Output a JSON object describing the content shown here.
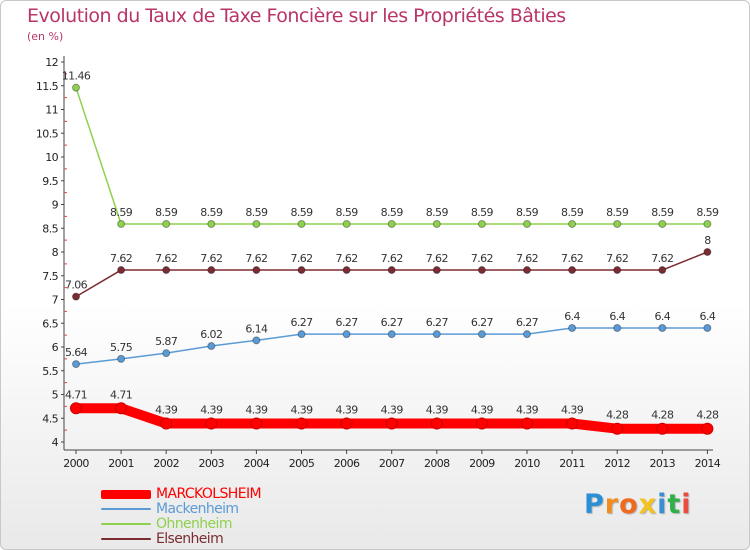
{
  "chart_data": {
    "type": "line",
    "title": "Evolution du Taux de Taxe Foncière sur les Propriétés Bâties",
    "subtitle": "(en %)",
    "xlabel": "",
    "ylabel": "",
    "x": [
      "2000",
      "2001",
      "2002",
      "2003",
      "2004",
      "2005",
      "2006",
      "2007",
      "2008",
      "2009",
      "2010",
      "2011",
      "2012",
      "2013",
      "2014"
    ],
    "ylim": [
      4,
      12
    ],
    "yticks": [
      4,
      4.5,
      5,
      5.5,
      6,
      6.5,
      7,
      7.5,
      8,
      8.5,
      9,
      9.5,
      10,
      10.5,
      11,
      11.5,
      12
    ],
    "ytick_labels": [
      "4",
      "4.5",
      "5",
      "5.5",
      "6",
      "6.5",
      "7",
      "7.5",
      "8",
      "8.5",
      "9",
      "9.5",
      "10",
      "10.5",
      "11",
      "11.5",
      "12"
    ],
    "grid": false,
    "legend": "bottom-left",
    "series": [
      {
        "name": "MARCKOLSHEIM",
        "color": "#ff0000",
        "values": [
          4.71,
          4.71,
          4.39,
          4.39,
          4.39,
          4.39,
          4.39,
          4.39,
          4.39,
          4.39,
          4.39,
          4.39,
          4.28,
          4.28,
          4.28
        ],
        "labels": [
          "4.71",
          "4.71",
          "4.39",
          "4.39",
          "4.39",
          "4.39",
          "4.39",
          "4.39",
          "4.39",
          "4.39",
          "4.39",
          "4.39",
          "4.28",
          "4.28",
          "4.28"
        ]
      },
      {
        "name": "Mackenheim",
        "color": "#5b9bd5",
        "values": [
          5.64,
          5.75,
          5.87,
          6.02,
          6.14,
          6.27,
          6.27,
          6.27,
          6.27,
          6.27,
          6.27,
          6.4,
          6.4,
          6.4,
          6.4
        ],
        "labels": [
          "5.64",
          "5.75",
          "5.87",
          "6.02",
          "6.14",
          "6.27",
          "6.27",
          "6.27",
          "6.27",
          "6.27",
          "6.27",
          "6.4",
          "6.4",
          "6.4",
          "6.4"
        ]
      },
      {
        "name": "Ohnenheim",
        "color": "#8fd14f",
        "values": [
          11.46,
          8.59,
          8.59,
          8.59,
          8.59,
          8.59,
          8.59,
          8.59,
          8.59,
          8.59,
          8.59,
          8.59,
          8.59,
          8.59,
          8.59
        ],
        "labels": [
          "11.46",
          "8.59",
          "8.59",
          "8.59",
          "8.59",
          "8.59",
          "8.59",
          "8.59",
          "8.59",
          "8.59",
          "8.59",
          "8.59",
          "8.59",
          "8.59",
          "8.59"
        ]
      },
      {
        "name": "Elsenheim",
        "color": "#7b2c32",
        "values": [
          7.06,
          7.62,
          7.62,
          7.62,
          7.62,
          7.62,
          7.62,
          7.62,
          7.62,
          7.62,
          7.62,
          7.62,
          7.62,
          7.62,
          8
        ],
        "labels": [
          "7.06",
          "7.62",
          "7.62",
          "7.62",
          "7.62",
          "7.62",
          "7.62",
          "7.62",
          "7.62",
          "7.62",
          "7.62",
          "7.62",
          "7.62",
          "7.62",
          "8"
        ]
      }
    ]
  },
  "branding": {
    "logo_letters": [
      "P",
      "r",
      "o",
      "x",
      "i",
      "t",
      "i"
    ],
    "logo_colors": [
      "#2a8fd4",
      "#f28c1e",
      "#ef6a1e",
      "#f2c21e",
      "#3a8fd4",
      "#2fb04a",
      "#e94b3c"
    ]
  }
}
